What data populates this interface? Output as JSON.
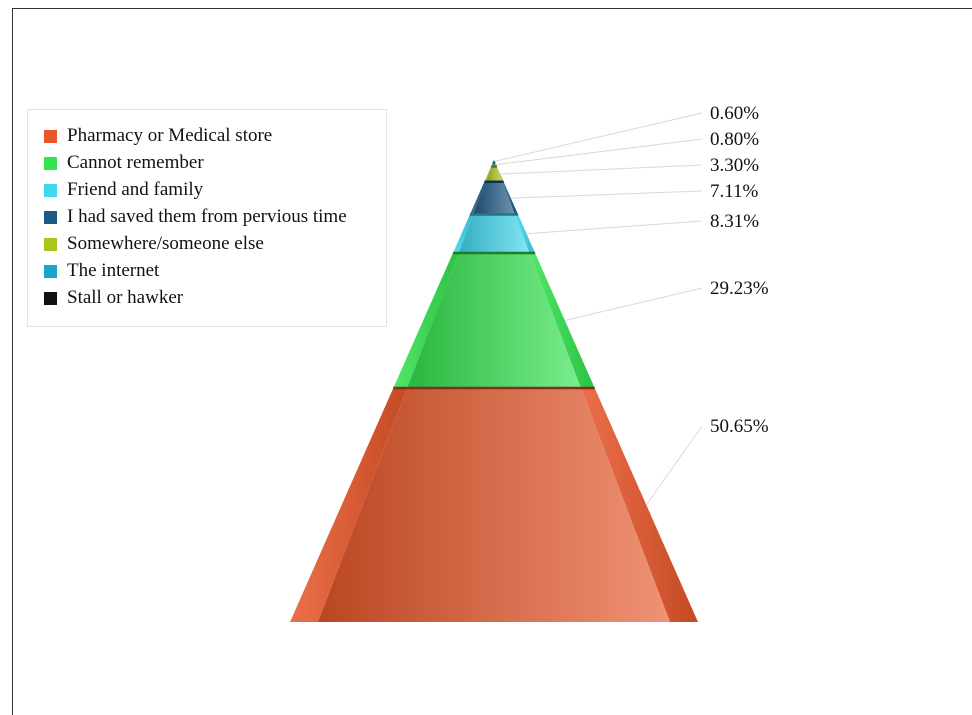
{
  "chart_data": {
    "type": "pyramid",
    "legend_position": "top-left",
    "series": [
      {
        "name": "Pharmacy or Medical store",
        "value": 50.65,
        "label": "50.65%",
        "color": "#e8572a"
      },
      {
        "name": "Cannot remember",
        "value": 29.23,
        "label": "29.23%",
        "color": "#33e34f"
      },
      {
        "name": "Friend and family",
        "value": 8.31,
        "label": "8.31%",
        "color": "#3fd8ef"
      },
      {
        "name": "I had saved them from pervious time",
        "value": 7.11,
        "label": "7.11%",
        "color": "#1f5a86"
      },
      {
        "name": "Somewhere/someone else",
        "value": 3.3,
        "label": "3.30%",
        "color": "#a9c61c"
      },
      {
        "name": "The internet",
        "value": 0.8,
        "label": "0.80%",
        "color": "#1aa6c8"
      },
      {
        "name": "Stall or hawker",
        "value": 0.6,
        "label": "0.60%",
        "color": "#111111"
      }
    ]
  }
}
